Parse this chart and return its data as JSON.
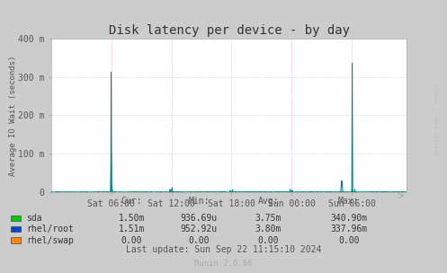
{
  "title": "Disk latency per device - by day",
  "ylabel": "Average IO Wait (seconds)",
  "background_color": "#CCCCCC",
  "plot_bg_color": "#FFFFFF",
  "ylim": [
    0,
    400
  ],
  "yticks": [
    0,
    100,
    200,
    300,
    400
  ],
  "ytick_labels": [
    "0",
    "100 m",
    "200 m",
    "300 m",
    "400 m"
  ],
  "xtick_labels": [
    "Sat 06:00",
    "Sat 12:00",
    "Sat 18:00",
    "Sun 00:00",
    "Sun 06:00"
  ],
  "sda_color": "#00AAAA",
  "rhel_root_color": "#006688",
  "rhel_swap_color": "#FF6600",
  "sda_legend_color": "#00CC00",
  "rhel_root_legend_color": "#0044CC",
  "rhel_swap_legend_color": "#FF8800",
  "table_headers": [
    "Cur:",
    "Min:",
    "Avg:",
    "Max:"
  ],
  "table_rows": [
    [
      "sda",
      "1.50m",
      "936.69u",
      "3.75m",
      "340.90m"
    ],
    [
      "rhel/root",
      "1.51m",
      "952.92u",
      "3.80m",
      "337.96m"
    ],
    [
      "rhel/swap",
      "0.00",
      "0.00",
      "0.00",
      "0.00"
    ]
  ],
  "last_update": "Last update: Sun Sep 22 11:15:10 2024",
  "munin_version": "Munin 2.0.66",
  "watermark": "RDTOOL / TOBI OETIKER",
  "title_fontsize": 10,
  "axis_fontsize": 7,
  "table_fontsize": 7
}
